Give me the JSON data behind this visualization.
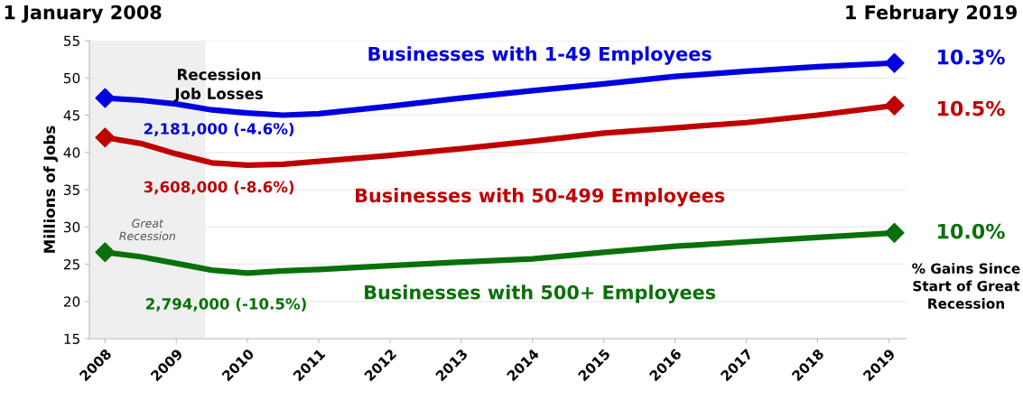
{
  "chart_data": {
    "type": "line",
    "ylabel": "Millions of Jobs",
    "xlim": [
      2007.78,
      2019.25
    ],
    "xticks": [
      2008,
      2009,
      2010,
      2011,
      2012,
      2013,
      2014,
      2015,
      2016,
      2017,
      2018,
      2019
    ],
    "ylim": [
      15,
      55
    ],
    "yticks": [
      15,
      20,
      25,
      30,
      35,
      40,
      45,
      50,
      55
    ],
    "x": [
      2008.0,
      2008.5,
      2009.0,
      2009.5,
      2010.0,
      2010.5,
      2011.0,
      2012.0,
      2013.0,
      2014.0,
      2015.0,
      2016.0,
      2017.0,
      2018.0,
      2019.08
    ],
    "series": [
      {
        "name": "Businesses with 1-49 Employees",
        "color": "#0000e0",
        "marker": "none",
        "values": [
          47.3,
          47.0,
          46.5,
          45.7,
          45.3,
          45.0,
          45.2,
          46.2,
          47.3,
          48.3,
          49.2,
          50.2,
          50.9,
          51.5,
          52.0
        ]
      },
      {
        "name": "Businesses with 50-499 Employees",
        "color": "#c00000",
        "marker": "none",
        "values": [
          42.0,
          41.2,
          39.8,
          38.6,
          38.3,
          38.4,
          38.8,
          39.6,
          40.5,
          41.5,
          42.6,
          43.3,
          44.0,
          45.0,
          46.3
        ]
      },
      {
        "name": "Businesses with 500+ Employees",
        "color": "#0a700a",
        "marker": "none",
        "values": [
          26.6,
          26.0,
          25.1,
          24.2,
          23.8,
          24.1,
          24.3,
          24.8,
          25.3,
          25.7,
          26.6,
          27.4,
          28.0,
          28.6,
          29.2
        ]
      },
      {
        "type": "scatter",
        "color": "#0000e0",
        "marker": "diamond",
        "values": [
          47.3,
          null,
          null,
          null,
          null,
          null,
          null,
          null,
          null,
          null,
          null,
          null,
          null,
          null,
          52.0
        ]
      },
      {
        "type": "scatter",
        "color": "#c00000",
        "marker": "diamond",
        "values": [
          42.0,
          null,
          null,
          null,
          null,
          null,
          null,
          null,
          null,
          null,
          null,
          null,
          null,
          null,
          46.3
        ]
      },
      {
        "type": "scatter",
        "color": "#0a700a",
        "marker": "diamond",
        "values": [
          26.6,
          null,
          null,
          null,
          null,
          null,
          null,
          null,
          null,
          null,
          null,
          null,
          null,
          null,
          29.2
        ]
      }
    ],
    "bands": [
      {
        "axis": "x",
        "from": 2007.78,
        "to": 2009.41,
        "label": "Great Recession",
        "color": "#efefef"
      }
    ],
    "annotations": [
      "1 January 2008",
      "1 February 2019",
      "Recession\nJob Losses",
      "2,181,000 (-4.6%)",
      "3,608,000 (-8.6%)",
      "2,794,000 (-10.5%)",
      "10.3%",
      "10.5%",
      "10.0%",
      "% Gains Since\nStart of Great\nRecession"
    ],
    "line_style": "solid",
    "grid": "y",
    "legend": false
  }
}
